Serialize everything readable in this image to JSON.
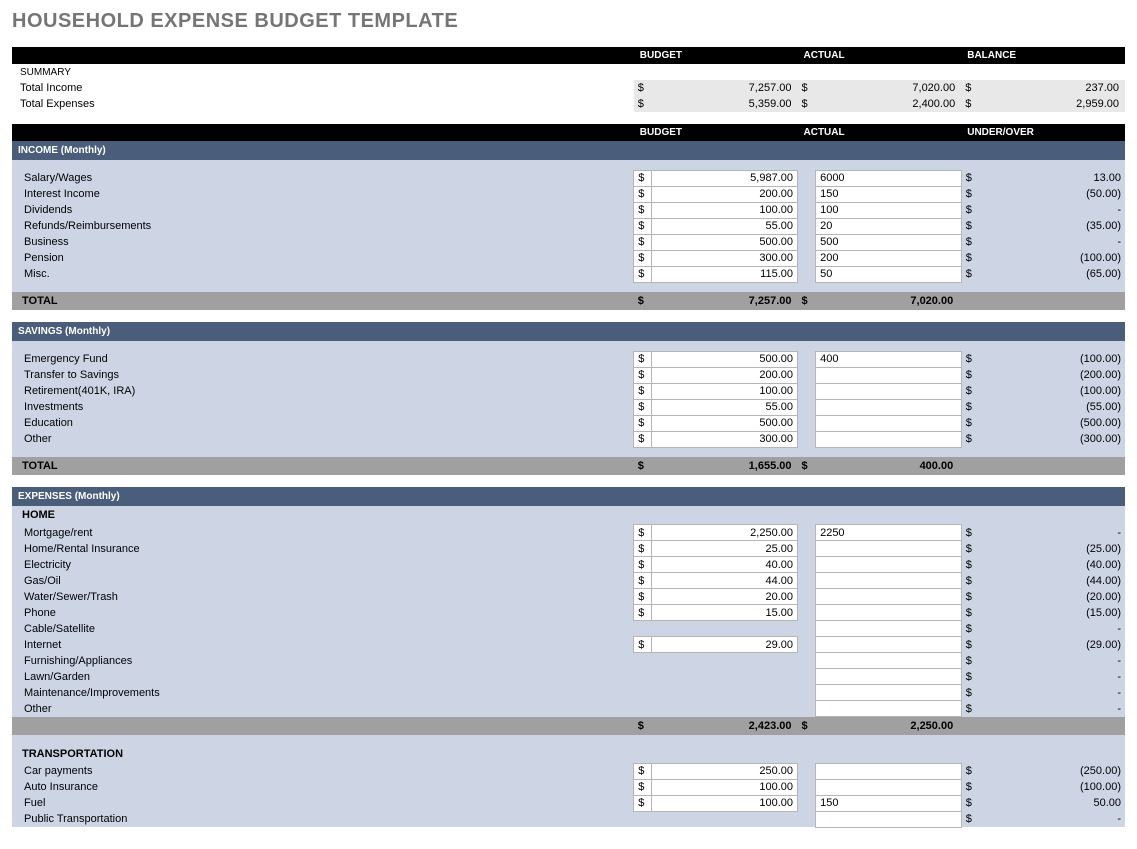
{
  "title": "HOUSEHOLD EXPENSE BUDGET TEMPLATE",
  "colors": {
    "headerBlack": "#000000",
    "sectionBlue": "#4a5d7a",
    "panelBlue": "#cdd5e5",
    "subtotalGray": "#a0a0a0",
    "sumGray": "#e8e8e8",
    "titleGray": "#757575",
    "cellBorder": "#b5b5b5"
  },
  "summary": {
    "label": "SUMMARY",
    "headers": {
      "budget": "BUDGET",
      "actual": "ACTUAL",
      "balance": "BALANCE"
    },
    "rows": [
      {
        "label": "Total Income",
        "budget": "7,257.00",
        "actual": "7,020.00",
        "balance": "237.00"
      },
      {
        "label": "Total Expenses",
        "budget": "5,359.00",
        "actual": "2,400.00",
        "balance": "2,959.00"
      }
    ]
  },
  "colHeaders": {
    "budget": "BUDGET",
    "actual": "ACTUAL",
    "under": "UNDER/OVER"
  },
  "sections": [
    {
      "title": "INCOME (Monthly)",
      "rows": [
        {
          "label": "Salary/Wages",
          "budget": "5,987.00",
          "actual": "6000",
          "under": "13.00"
        },
        {
          "label": "Interest Income",
          "budget": "200.00",
          "actual": "150",
          "under": "(50.00)"
        },
        {
          "label": "Dividends",
          "budget": "100.00",
          "actual": "100",
          "under": "-"
        },
        {
          "label": "Refunds/Reimbursements",
          "budget": "55.00",
          "actual": "20",
          "under": "(35.00)"
        },
        {
          "label": "Business",
          "budget": "500.00",
          "actual": "500",
          "under": "-"
        },
        {
          "label": "Pension",
          "budget": "300.00",
          "actual": "200",
          "under": "(100.00)"
        },
        {
          "label": "Misc.",
          "budget": "115.00",
          "actual": "50",
          "under": "(65.00)"
        }
      ],
      "total": {
        "label": "TOTAL",
        "budget": "7,257.00",
        "actual": "7,020.00"
      }
    },
    {
      "title": "SAVINGS (Monthly)",
      "rows": [
        {
          "label": "Emergency Fund",
          "budget": "500.00",
          "actual": "400",
          "under": "(100.00)"
        },
        {
          "label": "Transfer to Savings",
          "budget": "200.00",
          "actual": "",
          "under": "(200.00)"
        },
        {
          "label": "Retirement(401K, IRA)",
          "budget": "100.00",
          "actual": "",
          "under": "(100.00)"
        },
        {
          "label": "Investments",
          "budget": "55.00",
          "actual": "",
          "under": "(55.00)"
        },
        {
          "label": "Education",
          "budget": "500.00",
          "actual": "",
          "under": "(500.00)"
        },
        {
          "label": "Other",
          "budget": "300.00",
          "actual": "",
          "under": "(300.00)"
        }
      ],
      "total": {
        "label": "TOTAL",
        "budget": "1,655.00",
        "actual": "400.00"
      }
    },
    {
      "title": "EXPENSES (Monthly)",
      "subsections": [
        {
          "title": "HOME",
          "rows": [
            {
              "label": "Mortgage/rent",
              "budget": "2,250.00",
              "actual": "2250",
              "under": "-"
            },
            {
              "label": "Home/Rental Insurance",
              "budget": "25.00",
              "actual": "",
              "under": "(25.00)"
            },
            {
              "label": "Electricity",
              "budget": "40.00",
              "actual": "",
              "under": "(40.00)"
            },
            {
              "label": "Gas/Oil",
              "budget": "44.00",
              "actual": "",
              "under": "(44.00)"
            },
            {
              "label": "Water/Sewer/Trash",
              "budget": "20.00",
              "actual": "",
              "under": "(20.00)"
            },
            {
              "label": "Phone",
              "budget": "15.00",
              "actual": "",
              "under": "(15.00)"
            },
            {
              "label": "Cable/Satellite",
              "budget": "",
              "actual": "",
              "under": "-",
              "nobudget": true
            },
            {
              "label": "Internet",
              "budget": "29.00",
              "actual": "",
              "under": "(29.00)"
            },
            {
              "label": "Furnishing/Appliances",
              "budget": "",
              "actual": "",
              "under": "-",
              "nobudget": true
            },
            {
              "label": "Lawn/Garden",
              "budget": "",
              "actual": "",
              "under": "-",
              "nobudget": true
            },
            {
              "label": "Maintenance/Improvements",
              "budget": "",
              "actual": "",
              "under": "-",
              "nobudget": true
            },
            {
              "label": "Other",
              "budget": "",
              "actual": "",
              "under": "-",
              "nobudget": true
            }
          ],
          "total": {
            "budget": "2,423.00",
            "actual": "2,250.00"
          }
        },
        {
          "title": "TRANSPORTATION",
          "rows": [
            {
              "label": "Car payments",
              "budget": "250.00",
              "actual": "",
              "under": "(250.00)"
            },
            {
              "label": "Auto Insurance",
              "budget": "100.00",
              "actual": "",
              "under": "(100.00)"
            },
            {
              "label": "Fuel",
              "budget": "100.00",
              "actual": "150",
              "under": "50.00"
            },
            {
              "label": "Public Transportation",
              "budget": "",
              "actual": "",
              "under": "-",
              "nobudget": true
            }
          ]
        }
      ]
    }
  ]
}
